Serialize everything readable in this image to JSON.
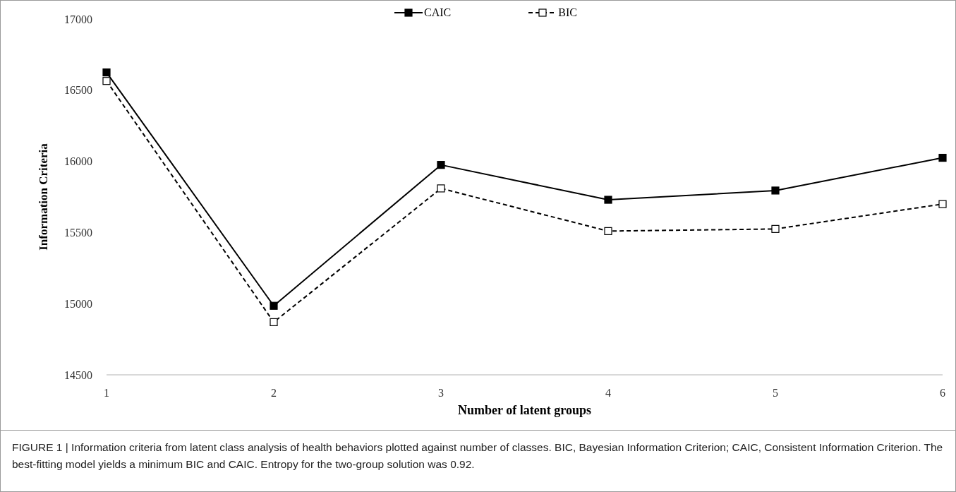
{
  "chart_data": {
    "type": "line",
    "xlabel": "Number of latent groups",
    "ylabel": "Information  Criteria",
    "categories": [
      "1",
      "2",
      "3",
      "4",
      "5",
      "6"
    ],
    "series": [
      {
        "name": "CAIC",
        "color": "#000000",
        "line_style": "solid",
        "values": [
          16625,
          14985,
          15975,
          15730,
          15795,
          16025
        ]
      },
      {
        "name": "BIC",
        "color": "#000000",
        "line_style": "dashed",
        "values": [
          16565,
          14870,
          15810,
          15510,
          15525,
          15700
        ]
      }
    ],
    "ylim": [
      14500,
      17000
    ],
    "yticks": [
      14500,
      15000,
      15500,
      16000,
      16500,
      17000
    ],
    "grid": false,
    "legend": "top",
    "marker": "square",
    "annotations": [
      "FIGURE 1 | Information criteria from latent class analysis of health behaviors plotted against number of classes. BIC, Bayesian Information Criterion; CAIC, Consistent Information Criterion. The best-fitting model yields a minimum BIC and CAIC. Entropy for the two-group solution was 0.92."
    ]
  }
}
